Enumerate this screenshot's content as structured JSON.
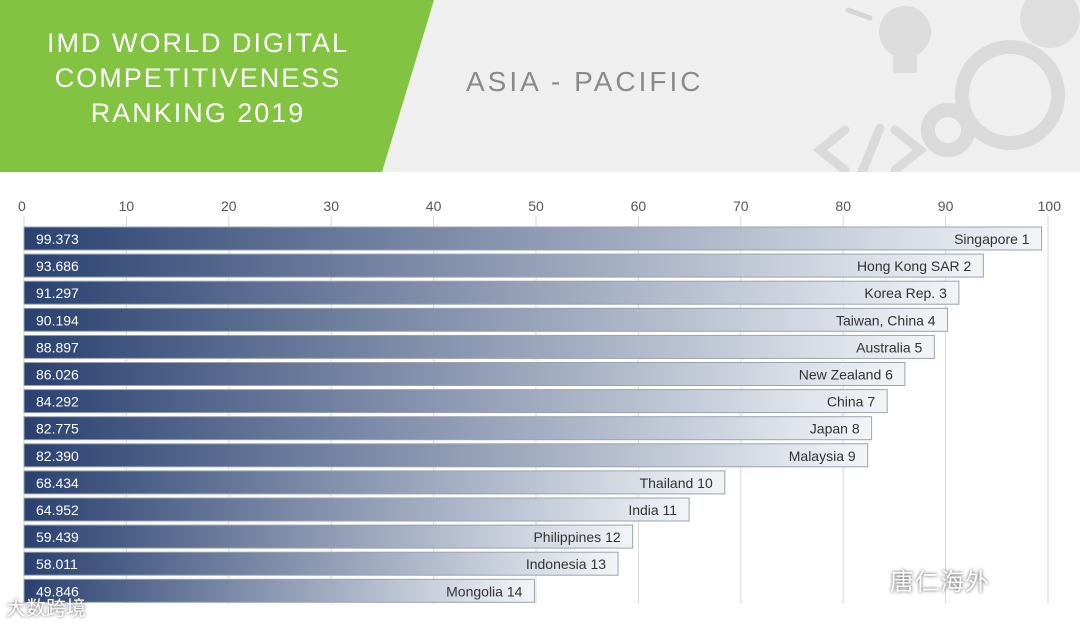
{
  "header": {
    "title_lines": [
      "IMD WORLD DIGITAL",
      "COMPETITIVENESS",
      "RANKING 2019"
    ],
    "region": "ASIA - PACIFIC",
    "accent_color": "#82c341"
  },
  "watermarks": {
    "left": "大数跨境",
    "right": "唐仁海外"
  },
  "chart_data": {
    "type": "bar",
    "orientation": "horizontal",
    "xlim": [
      0,
      100
    ],
    "x_ticks": [
      "0",
      "10",
      "20",
      "30",
      "40",
      "50",
      "60",
      "70",
      "80",
      "90",
      "100"
    ],
    "grid": true,
    "bars": [
      {
        "value": 99.373,
        "value_label": "99.373",
        "label": "Singapore 1"
      },
      {
        "value": 93.686,
        "value_label": "93.686",
        "label": "Hong Kong SAR 2"
      },
      {
        "value": 91.297,
        "value_label": "91.297",
        "label": "Korea Rep. 3"
      },
      {
        "value": 90.194,
        "value_label": "90.194",
        "label": "Taiwan, China 4"
      },
      {
        "value": 88.897,
        "value_label": "88.897",
        "label": "Australia 5"
      },
      {
        "value": 86.026,
        "value_label": "86.026",
        "label": "New Zealand 6"
      },
      {
        "value": 84.292,
        "value_label": "84.292",
        "label": "China 7"
      },
      {
        "value": 82.775,
        "value_label": "82.775",
        "label": "Japan 8"
      },
      {
        "value": 82.39,
        "value_label": "82.390",
        "label": "Malaysia 9"
      },
      {
        "value": 68.434,
        "value_label": "68.434",
        "label": "Thailand 10"
      },
      {
        "value": 64.952,
        "value_label": "64.952",
        "label": "India 11"
      },
      {
        "value": 59.439,
        "value_label": "59.439",
        "label": "Philippines 12"
      },
      {
        "value": 58.011,
        "value_label": "58.011",
        "label": "Indonesia 13"
      },
      {
        "value": 49.846,
        "value_label": "49.846",
        "label": "Mongolia 14"
      }
    ],
    "colors": {
      "bar_start": "#2a4170",
      "bar_end": "#f2f4f7",
      "grid": "#d8d8d8",
      "text": "#333333"
    }
  }
}
